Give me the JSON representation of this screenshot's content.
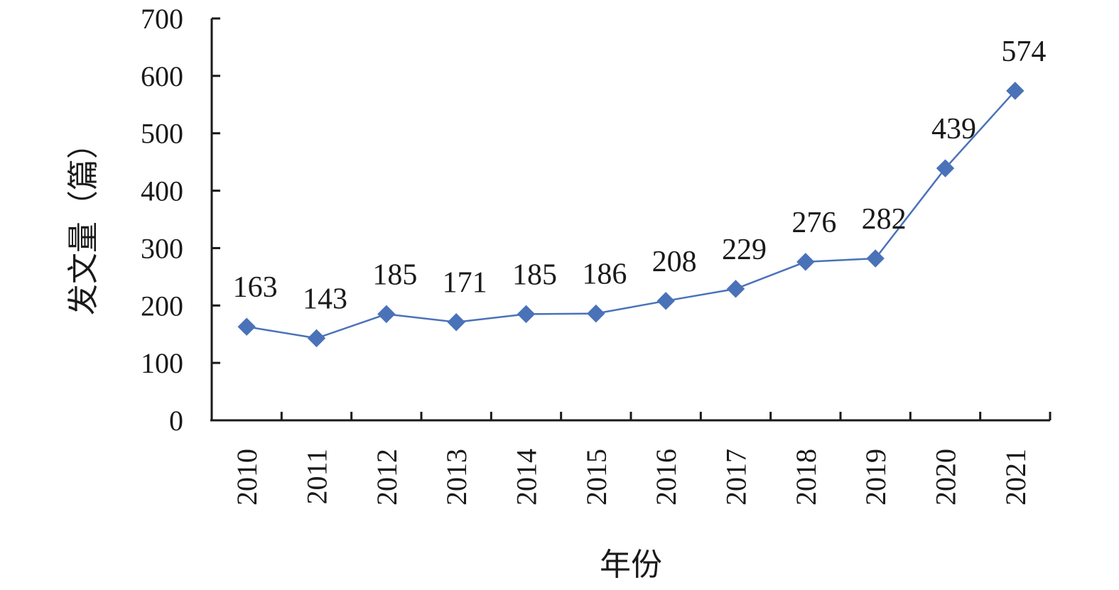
{
  "chart_data": {
    "type": "line",
    "title": "",
    "xlabel": "年份",
    "ylabel": "发文量（篇）",
    "categories": [
      "2010",
      "2011",
      "2012",
      "2013",
      "2014",
      "2015",
      "2016",
      "2017",
      "2018",
      "2019",
      "2020",
      "2021"
    ],
    "series": [
      {
        "values": [
          163,
          143,
          185,
          171,
          185,
          186,
          208,
          229,
          276,
          282,
          439,
          574
        ],
        "color": "#4a72b8",
        "marker": "diamond"
      }
    ],
    "ylim": [
      0,
      700
    ],
    "yticks": [
      0,
      100,
      200,
      300,
      400,
      500,
      600,
      700
    ],
    "grid": false,
    "legend": "none",
    "data_labels": true
  }
}
